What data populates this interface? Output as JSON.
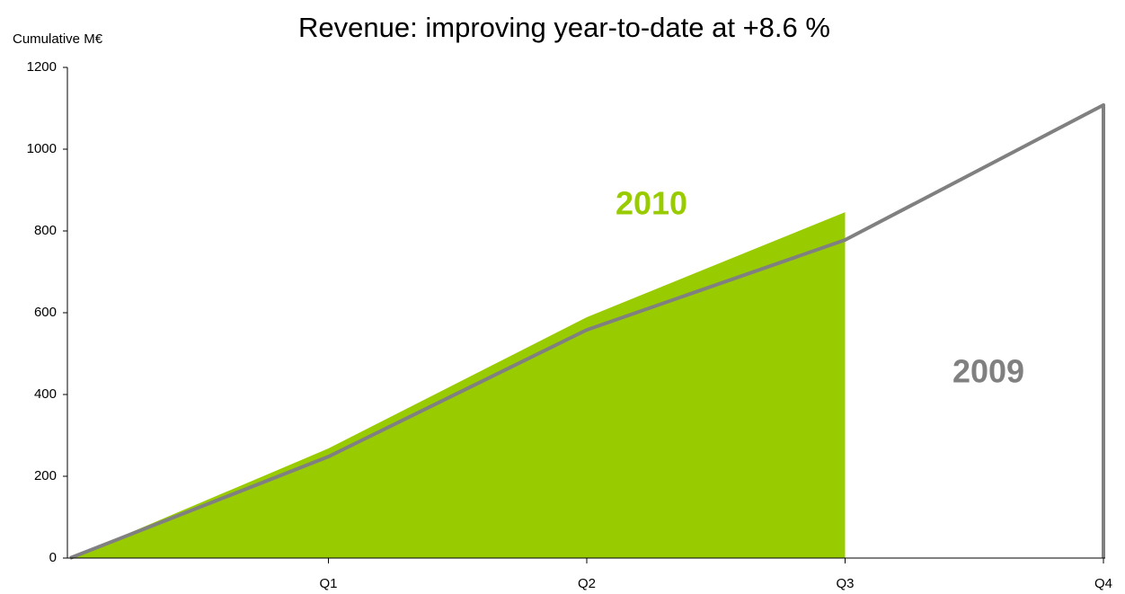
{
  "chart_data": {
    "type": "area",
    "title": "Revenue: improving year-to-date at +8.6 %",
    "y_label": "Cumulative M€",
    "categories": [
      null,
      "Q1",
      "Q2",
      "Q3",
      "Q4"
    ],
    "series": [
      {
        "name": "2010",
        "color": "#99cc00",
        "fill": true,
        "values": [
          0,
          268,
          589,
          846,
          null
        ]
      },
      {
        "name": "2009",
        "color": "#808080",
        "fill": false,
        "values": [
          0,
          248,
          558,
          778,
          1108
        ]
      }
    ],
    "ylim": [
      0,
      1200
    ],
    "yticks": [
      0,
      200,
      400,
      600,
      800,
      1000,
      1200
    ],
    "grid": false
  }
}
